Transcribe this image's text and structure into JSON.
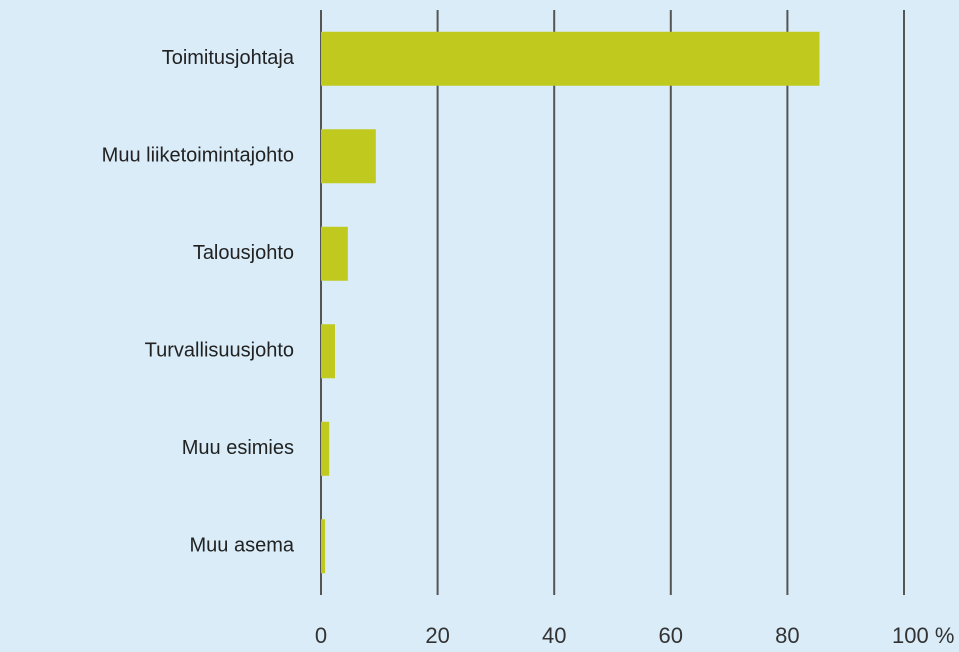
{
  "chart_data": {
    "type": "bar",
    "orientation": "horizontal",
    "categories": [
      "Toimitusjohtaja",
      "Muu liiketoimintajohto",
      "Talousjohto",
      "Turvallisuusjohto",
      "Muu esimies",
      "Muu asema"
    ],
    "values": [
      85.5,
      9.4,
      4.6,
      2.4,
      1.4,
      0.7
    ],
    "color": "#bfc91e",
    "xlim": [
      0,
      100
    ],
    "xticks": [
      0,
      20,
      40,
      60,
      80,
      {
        "value": 100,
        "label": "100 %"
      }
    ],
    "grid": true
  }
}
